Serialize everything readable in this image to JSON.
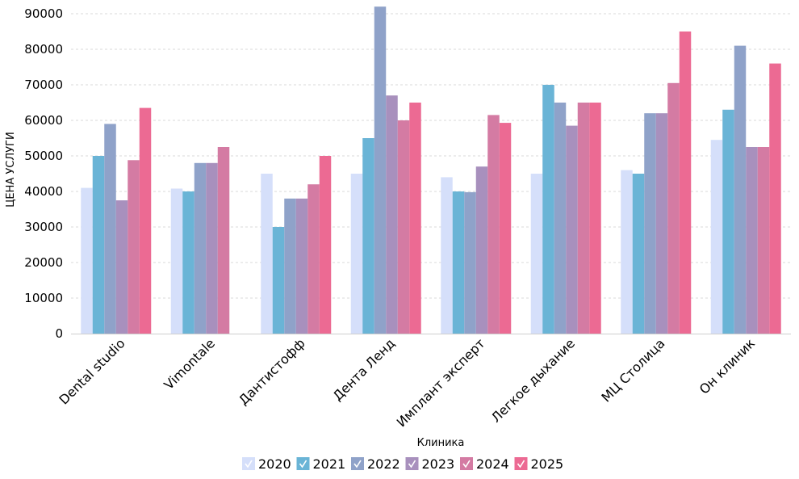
{
  "chart_data": {
    "type": "bar",
    "title": "",
    "xlabel": "Клиника",
    "ylabel": "ЦЕНА УСЛУГИ",
    "ylim": [
      0,
      90000
    ],
    "yticks": [
      0,
      10000,
      20000,
      30000,
      40000,
      50000,
      60000,
      70000,
      80000,
      90000
    ],
    "grid": true,
    "legend_position": "bottom",
    "categories": [
      "Dental studio",
      "Vimontale",
      "Дантистофф",
      "Дента Ленд",
      "Имплант эксперт",
      "Легкое дыхание",
      "МЦ Столица",
      "Он клиник"
    ],
    "series": [
      {
        "name": "2020",
        "color": "#d5dffa",
        "values": [
          41000,
          40800,
          45000,
          45000,
          44000,
          45000,
          46000,
          54500
        ]
      },
      {
        "name": "2021",
        "color": "#6ab4d6",
        "values": [
          50000,
          40000,
          30000,
          55000,
          40000,
          70000,
          45000,
          63000
        ]
      },
      {
        "name": "2022",
        "color": "#8fa2c9",
        "values": [
          59000,
          48000,
          38000,
          92000,
          39800,
          65000,
          62000,
          81000
        ]
      },
      {
        "name": "2023",
        "color": "#a890bd",
        "values": [
          37500,
          48000,
          38000,
          67000,
          47000,
          58500,
          62000,
          52500
        ]
      },
      {
        "name": "2024",
        "color": "#d47ba3",
        "values": [
          48800,
          52500,
          42000,
          60000,
          61500,
          65000,
          70500,
          52500
        ]
      },
      {
        "name": "2025",
        "color": "#ec6a93",
        "values": [
          63500,
          null,
          50000,
          65000,
          59300,
          65000,
          85000,
          76000
        ]
      }
    ]
  }
}
